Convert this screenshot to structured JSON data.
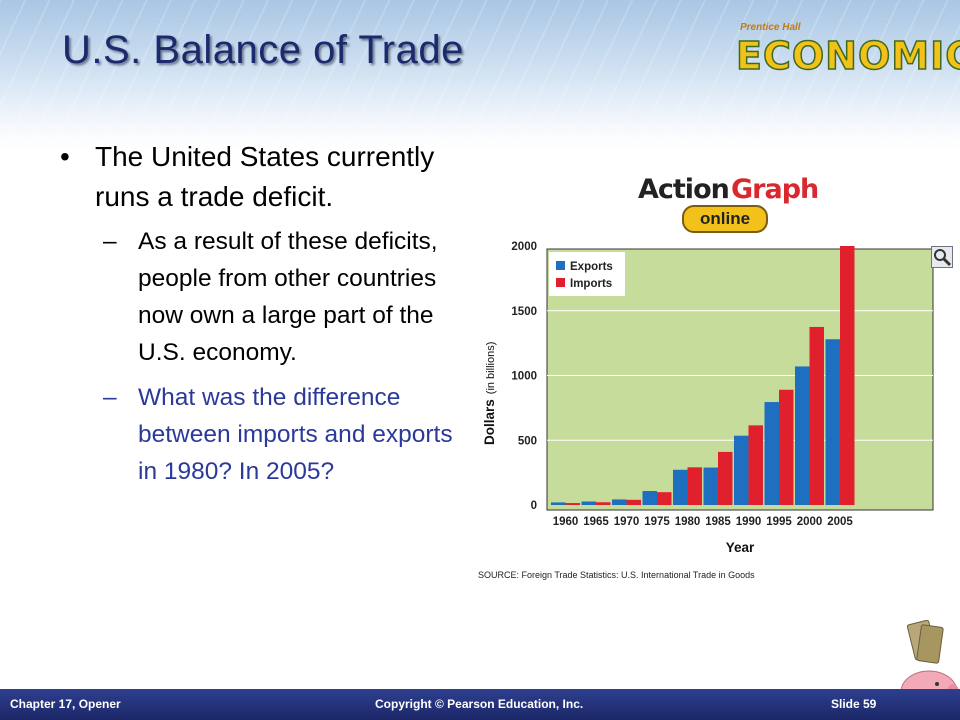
{
  "slide": {
    "title": "U.S. Balance of Trade",
    "brand_top": "Prentice Hall",
    "brand_main": "ECONOMICS"
  },
  "bullets": {
    "main": "The United States currently runs a trade deficit.",
    "sub1": "As a result of these deficits, people from other countries now own a large part of the U.S. economy.",
    "sub2": "What was the difference between imports and exports in 1980? In 2005?"
  },
  "action_graph": {
    "action": "Action",
    "graph": "Graph",
    "online": "online"
  },
  "chart_data": {
    "type": "bar",
    "categories": [
      "1960",
      "1965",
      "1970",
      "1975",
      "1980",
      "1985",
      "1990",
      "1995",
      "2000",
      "2005"
    ],
    "series": [
      {
        "name": "Exports",
        "color": "#1f6fc0",
        "values": [
          20,
          27,
          43,
          108,
          272,
          289,
          535,
          795,
          1070,
          1280
        ]
      },
      {
        "name": "Imports",
        "color": "#e1202e",
        "values": [
          15,
          21,
          40,
          99,
          291,
          410,
          615,
          890,
          1375,
          2000
        ]
      }
    ],
    "xlabel": "Year",
    "ylabel_main": "Dollars",
    "ylabel_unit": "(in billions)",
    "ylim": [
      0,
      2000
    ],
    "yticks": [
      0,
      500,
      1000,
      1500,
      2000
    ],
    "legend_position": "top-left",
    "plot_background": "#c6dc9a",
    "source": "SOURCE: Foreign Trade Statistics: U.S. International Trade in Goods"
  },
  "footer": {
    "left": "Chapter 17, Opener",
    "center": "Copyright © Pearson Education, Inc.",
    "right": "Slide 59"
  }
}
